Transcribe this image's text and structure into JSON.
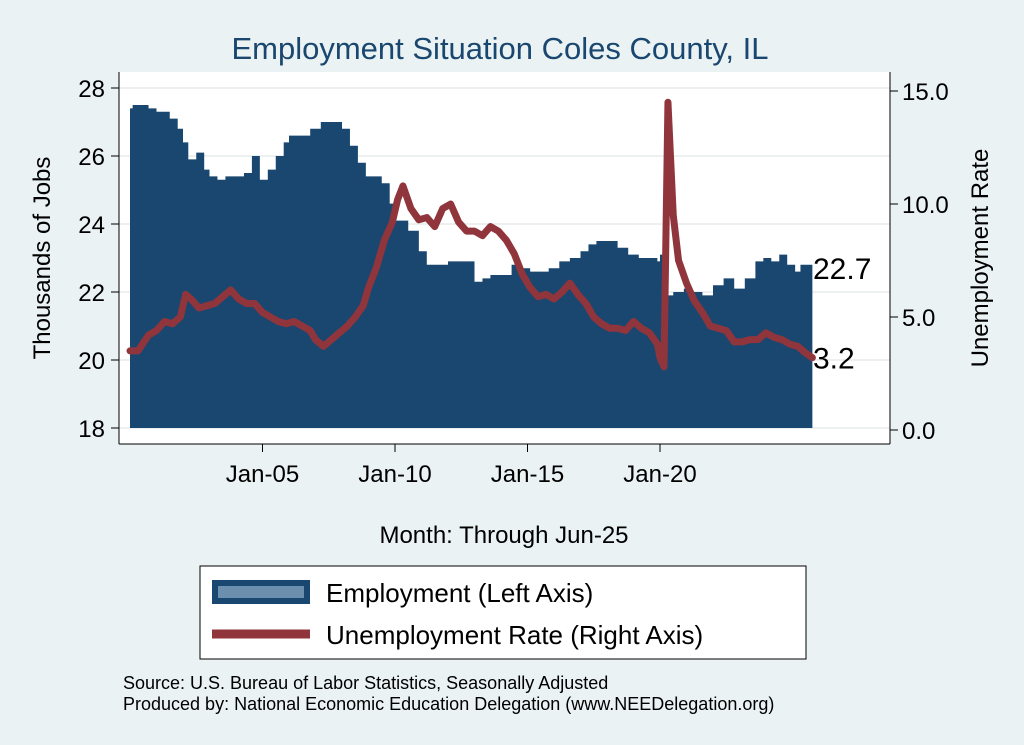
{
  "chart_data": {
    "type": "bar+line",
    "title": "Employment Situation Coles  County, IL",
    "xlabel": "Month: Through Jun-25",
    "ylabel_left": "Thousands of Jobs",
    "ylabel_right": "Unemployment Rate",
    "ylim_left": [
      18,
      28.5
    ],
    "yticks_left": [
      "18",
      "20",
      "22",
      "24",
      "26",
      "28"
    ],
    "ylim_right": [
      0,
      15.5
    ],
    "yticks_right": [
      "0.0",
      "5.0",
      "10.0",
      "15.0"
    ],
    "xticks": [
      "Jan-05",
      "Jan-10",
      "Jan-15",
      "Jan-20"
    ],
    "xtick_years": [
      2005,
      2010,
      2015,
      2020
    ],
    "x_start_year": 2000.0,
    "x_end_year": 2025.75,
    "grid": true,
    "colors": {
      "employment": "#1a476f",
      "unemployment": "#90353b",
      "background": "#eaf2f3",
      "plot": "#ffffff"
    },
    "series": [
      {
        "name": "Employment (Left Axis)",
        "axis": "left",
        "style": "area",
        "x": [
          2000.0,
          2000.1,
          2000.7,
          2001.0,
          2001.5,
          2001.8,
          2002.0,
          2002.2,
          2002.5,
          2002.8,
          2003.0,
          2003.3,
          2003.6,
          2004.0,
          2004.3,
          2004.6,
          2004.9,
          2005.2,
          2005.5,
          2005.8,
          2006.0,
          2006.5,
          2006.8,
          2007.2,
          2007.6,
          2008.0,
          2008.3,
          2008.6,
          2008.9,
          2009.1,
          2009.5,
          2009.8,
          2010.0,
          2010.5,
          2010.9,
          2011.2,
          2011.6,
          2012.0,
          2012.4,
          2012.8,
          2013.0,
          2013.3,
          2013.6,
          2014.0,
          2014.4,
          2014.8,
          2015.1,
          2015.5,
          2015.8,
          2016.2,
          2016.6,
          2017.0,
          2017.3,
          2017.6,
          2018.0,
          2018.4,
          2018.8,
          2019.2,
          2019.6,
          2019.9,
          2020.0,
          2020.2,
          2020.5,
          2020.9,
          2021.2,
          2021.6,
          2022.0,
          2022.4,
          2022.8,
          2023.2,
          2023.6,
          2023.9,
          2024.2,
          2024.5,
          2024.8,
          2025.1,
          2025.3,
          2025.5,
          2025.75
        ],
        "values": [
          27.4,
          27.5,
          27.4,
          27.3,
          27.1,
          26.8,
          26.4,
          25.9,
          26.1,
          25.6,
          25.4,
          25.3,
          25.4,
          25.4,
          25.5,
          26.0,
          25.3,
          25.6,
          26.0,
          26.4,
          26.6,
          26.6,
          26.8,
          27.0,
          27.0,
          26.8,
          26.3,
          25.8,
          25.4,
          25.4,
          25.2,
          24.6,
          24.1,
          23.8,
          23.2,
          22.8,
          22.8,
          22.9,
          22.9,
          22.9,
          22.3,
          22.4,
          22.5,
          22.5,
          22.8,
          22.7,
          22.6,
          22.6,
          22.7,
          22.9,
          23.0,
          23.2,
          23.4,
          23.5,
          23.5,
          23.3,
          23.1,
          23.0,
          23.0,
          22.9,
          23.1,
          21.9,
          22.0,
          22.1,
          22.0,
          21.9,
          22.2,
          22.4,
          22.1,
          22.4,
          22.9,
          23.0,
          22.9,
          23.1,
          22.8,
          22.6,
          22.8,
          22.8,
          22.7
        ]
      },
      {
        "name": "Unemployment Rate (Right Axis)",
        "axis": "right",
        "style": "line",
        "x": [
          2000.0,
          2000.3,
          2000.7,
          2001.0,
          2001.3,
          2001.6,
          2001.9,
          2002.1,
          2002.3,
          2002.6,
          2002.9,
          2003.2,
          2003.5,
          2003.8,
          2004.1,
          2004.4,
          2004.7,
          2005.0,
          2005.3,
          2005.6,
          2005.9,
          2006.2,
          2006.5,
          2006.8,
          2007.0,
          2007.3,
          2007.6,
          2007.9,
          2008.2,
          2008.5,
          2008.8,
          2009.0,
          2009.3,
          2009.6,
          2009.9,
          2010.1,
          2010.3,
          2010.6,
          2010.9,
          2011.2,
          2011.5,
          2011.8,
          2012.1,
          2012.4,
          2012.7,
          2013.0,
          2013.3,
          2013.6,
          2013.9,
          2014.2,
          2014.5,
          2014.8,
          2015.1,
          2015.4,
          2015.7,
          2016.0,
          2016.3,
          2016.6,
          2016.9,
          2017.2,
          2017.5,
          2017.8,
          2018.1,
          2018.4,
          2018.7,
          2019.0,
          2019.3,
          2019.6,
          2019.9,
          2020.0,
          2020.15,
          2020.3,
          2020.5,
          2020.7,
          2021.0,
          2021.3,
          2021.6,
          2021.9,
          2022.2,
          2022.5,
          2022.8,
          2023.1,
          2023.4,
          2023.7,
          2024.0,
          2024.3,
          2024.6,
          2024.9,
          2025.2,
          2025.5,
          2025.75
        ],
        "values": [
          3.5,
          3.5,
          4.2,
          4.4,
          4.8,
          4.7,
          5.0,
          6.0,
          5.8,
          5.4,
          5.5,
          5.6,
          5.9,
          6.2,
          5.8,
          5.6,
          5.6,
          5.2,
          5.0,
          4.8,
          4.7,
          4.8,
          4.6,
          4.4,
          4.0,
          3.7,
          4.0,
          4.3,
          4.6,
          5.0,
          5.5,
          6.3,
          7.2,
          8.4,
          9.2,
          10.2,
          10.8,
          9.8,
          9.3,
          9.4,
          9.0,
          9.8,
          10.0,
          9.2,
          8.8,
          8.8,
          8.6,
          9.0,
          8.8,
          8.4,
          7.8,
          6.9,
          6.3,
          5.9,
          6.0,
          5.8,
          6.1,
          6.5,
          6.0,
          5.6,
          5.0,
          4.7,
          4.5,
          4.5,
          4.4,
          4.8,
          4.5,
          4.3,
          3.8,
          3.2,
          2.8,
          14.5,
          9.5,
          7.5,
          6.5,
          5.7,
          5.2,
          4.6,
          4.5,
          4.4,
          3.9,
          3.9,
          4.0,
          4.0,
          4.3,
          4.1,
          4.0,
          3.8,
          3.7,
          3.4,
          3.2
        ]
      }
    ],
    "end_labels": {
      "employment": "22.7",
      "unemployment": "3.2"
    },
    "legend": {
      "position": "bottom",
      "items": [
        "Employment (Left Axis)",
        "Unemployment Rate (Right Axis)"
      ]
    },
    "notes": [
      "Source: U.S. Bureau of Labor Statistics, Seasonally Adjusted",
      "Produced by: National Economic Education Delegation (www.NEEDelegation.org)"
    ]
  }
}
